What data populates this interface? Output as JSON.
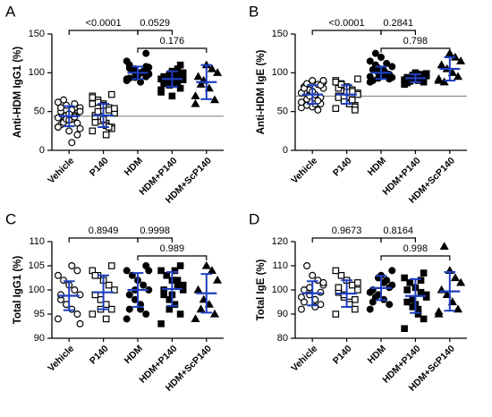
{
  "chart_data": [
    {
      "type": "dot",
      "panel_label": "A",
      "ylabel": "Anti-HDM IgG1 (%)",
      "categories": [
        "Vehicle",
        "P140",
        "HDM",
        "HDM+P140",
        "HDM+ScP140"
      ],
      "values": [
        [
          30,
          35,
          40,
          45,
          50,
          55,
          60,
          25,
          38,
          42,
          48,
          52,
          58,
          33,
          28,
          45,
          47,
          36,
          62,
          20,
          10,
          40,
          55,
          50,
          43,
          39,
          65,
          30
        ],
        [
          25,
          30,
          35,
          40,
          45,
          50,
          55,
          60,
          65,
          70,
          28,
          32,
          38,
          42,
          48,
          52,
          58,
          62,
          68,
          72,
          20,
          44,
          36,
          54,
          30,
          40,
          50,
          60
        ],
        [
          90,
          95,
          100,
          105,
          110,
          98,
          102,
          96,
          104,
          92,
          108,
          100,
          94,
          106,
          99,
          101,
          97,
          103,
          115,
          125,
          88,
          100,
          93,
          107
        ],
        [
          75,
          80,
          85,
          90,
          95,
          100,
          105,
          70,
          88,
          92,
          96,
          98,
          84,
          86,
          94,
          100,
          102,
          90,
          78,
          110,
          93,
          97,
          89,
          91,
          87
        ],
        [
          60,
          65,
          80,
          90,
          95,
          100,
          105,
          110,
          85,
          70
        ]
      ],
      "mean": [
        44,
        45,
        100,
        92,
        88
      ],
      "sd": [
        13,
        15,
        8,
        10,
        22
      ],
      "reference_line": 44,
      "comparisons": [
        {
          "label": "<0.0001",
          "from": "Vehicle",
          "to": "HDM"
        },
        {
          "label": "0.0529",
          "from": "HDM",
          "to": "HDM+P140"
        },
        {
          "label": "0.176",
          "from": "HDM",
          "to": "HDM+ScP140"
        }
      ],
      "color": "#1f3fbf",
      "ylim": [
        0,
        150
      ],
      "yticks": [
        0,
        50,
        100,
        150
      ]
    },
    {
      "type": "dot",
      "panel_label": "B",
      "ylabel": "Anti-HDM IgE (%)",
      "categories": [
        "Vehicle",
        "P140",
        "HDM",
        "HDM+P140",
        "HDM+ScP140"
      ],
      "values": [
        [
          55,
          60,
          65,
          70,
          75,
          80,
          85,
          90,
          58,
          62,
          68,
          72,
          78,
          82,
          88,
          52,
          56,
          66,
          74,
          84,
          60,
          70,
          80,
          90,
          64,
          76,
          86
        ],
        [
          54,
          58,
          62,
          66,
          70,
          74,
          78,
          82,
          86,
          90,
          56,
          60,
          64,
          68,
          72,
          76,
          80,
          84,
          88,
          52,
          60,
          70,
          80,
          92,
          65,
          75,
          85
        ],
        [
          88,
          92,
          96,
          100,
          104,
          108,
          112,
          120,
          125,
          95,
          98,
          102,
          106,
          90,
          94,
          99,
          101,
          110,
          115,
          97,
          103,
          93
        ],
        [
          85,
          88,
          90,
          92,
          94,
          96,
          98,
          100,
          89,
          91,
          93,
          95,
          97,
          87,
          99
        ],
        [
          90,
          95,
          100,
          105,
          110,
          115,
          120,
          125,
          88,
          92
        ]
      ],
      "mean": [
        72,
        72,
        100,
        93,
        105
      ],
      "sd": [
        12,
        12,
        8,
        5,
        15
      ],
      "reference_line": 70,
      "comparisons": [
        {
          "label": "<0.0001",
          "from": "Vehicle",
          "to": "HDM"
        },
        {
          "label": "0.2841",
          "from": "HDM",
          "to": "HDM+P140"
        },
        {
          "label": "0.798",
          "from": "HDM",
          "to": "HDM+ScP140"
        }
      ],
      "color": "#1f3fbf",
      "ylim": [
        0,
        150
      ],
      "yticks": [
        0,
        50,
        100,
        150
      ]
    },
    {
      "type": "dot",
      "panel_label": "C",
      "ylabel": "Total IgG1 (%)",
      "categories": [
        "Vehicle",
        "P140",
        "HDM",
        "HDM+P140",
        "HDM+ScP140"
      ],
      "values": [
        [
          94,
          95,
          96,
          97,
          98,
          99,
          100,
          101,
          102,
          103,
          104,
          105,
          97,
          99,
          93
        ],
        [
          95,
          96,
          97,
          98,
          99,
          100,
          101,
          102,
          103,
          104,
          105,
          94,
          96,
          103
        ],
        [
          94,
          95,
          96,
          98,
          99,
          100,
          101,
          102,
          103,
          104,
          105,
          97,
          100,
          96,
          104
        ],
        [
          93,
          95,
          97,
          98,
          99,
          100,
          101,
          102,
          103,
          104,
          105,
          104,
          96,
          100,
          101,
          102,
          99
        ],
        [
          94,
          95,
          97,
          98,
          100,
          102,
          104,
          105,
          96
        ]
      ],
      "mean": [
        98.8,
        99.5,
        100,
        100.2,
        99.3
      ],
      "sd": [
        3,
        3.5,
        3.5,
        3.5,
        4
      ],
      "comparisons": [
        {
          "label": "0.8949",
          "from": "Vehicle",
          "to": "HDM"
        },
        {
          "label": "0.9998",
          "from": "HDM",
          "to": "HDM+P140"
        },
        {
          "label": "0.989",
          "from": "HDM",
          "to": "HDM+ScP140"
        }
      ],
      "color": "#1f3fbf",
      "ylim": [
        90,
        110
      ],
      "yticks": [
        90,
        95,
        100,
        105,
        110
      ]
    },
    {
      "type": "dot",
      "panel_label": "D",
      "ylabel": "Total IgE (%)",
      "categories": [
        "Vehicle",
        "P140",
        "HDM",
        "HDM+P140",
        "HDM+ScP140"
      ],
      "values": [
        [
          92,
          94,
          96,
          98,
          100,
          102,
          104,
          106,
          110,
          97,
          99,
          93,
          101,
          95,
          103
        ],
        [
          90,
          92,
          95,
          97,
          99,
          100,
          102,
          104,
          106,
          108,
          96,
          94,
          98,
          101,
          103
        ],
        [
          92,
          94,
          96,
          98,
          100,
          102,
          104,
          106,
          97,
          99,
          101,
          103,
          105,
          95,
          108
        ],
        [
          84,
          88,
          90,
          93,
          95,
          97,
          99,
          101,
          103,
          105,
          107,
          92,
          96,
          100,
          98,
          104,
          94
        ],
        [
          90,
          92,
          95,
          98,
          100,
          103,
          105,
          108,
          118,
          91
        ]
      ],
      "mean": [
        98.6,
        98.5,
        100.8,
        97.5,
        99.4
      ],
      "sd": [
        5,
        5.5,
        5,
        7,
        8
      ],
      "comparisons": [
        {
          "label": "0.9673",
          "from": "Vehicle",
          "to": "HDM"
        },
        {
          "label": "0.8164",
          "from": "HDM",
          "to": "HDM+P140"
        },
        {
          "label": "0.998",
          "from": "HDM",
          "to": "HDM+ScP140"
        }
      ],
      "color": "#1f3fbf",
      "ylim": [
        80,
        120
      ],
      "yticks": [
        80,
        90,
        100,
        110,
        120
      ]
    }
  ]
}
